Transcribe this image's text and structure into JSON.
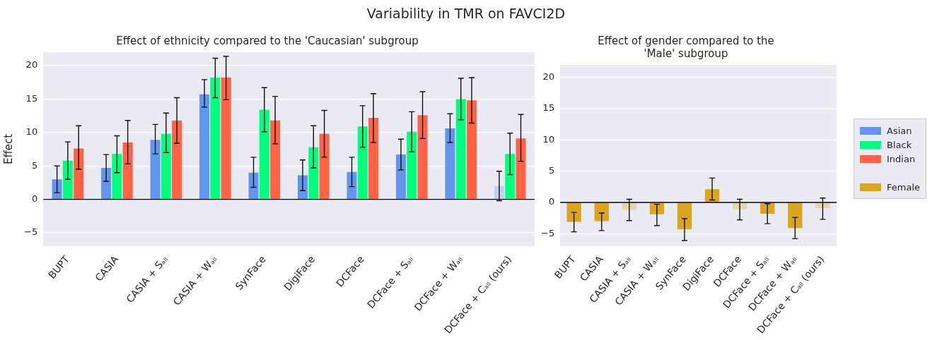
{
  "chart_data": [
    {
      "type": "bar",
      "title": "Variability in TMR on FAVCI2D",
      "subtitle": "Effect of ethnicity compared to the 'Caucasian' subgroup",
      "ylabel": "Effect",
      "categories": [
        "BUPT",
        "CASIA",
        "CASIA + Sₐₗₗ",
        "CASIA + Wₐₗₗ",
        "SynFace",
        "DigiFace",
        "DCFace",
        "DCFace + Sₐₗₗ",
        "DCFace + Wₐₗₗ",
        "DCFace + Cₐₗₗ (ours)"
      ],
      "series": [
        {
          "name": "Asian",
          "color": "#6495ed",
          "colors": [
            "#6495ed",
            "#6495ed",
            "#6495ed",
            "#6495ed",
            "#6495ed",
            "#6495ed",
            "#6495ed",
            "#6495ed",
            "#6495ed",
            "#c2d0f0"
          ],
          "values": [
            3.0,
            4.7,
            8.9,
            15.7,
            4.0,
            3.6,
            4.1,
            6.7,
            10.6,
            2.0
          ],
          "errors": [
            [
              1.0,
              5.0
            ],
            [
              2.7,
              6.7
            ],
            [
              6.8,
              11.2
            ],
            [
              13.8,
              17.9
            ],
            [
              1.8,
              6.3
            ],
            [
              1.3,
              5.9
            ],
            [
              1.9,
              6.3
            ],
            [
              4.4,
              9.0
            ],
            [
              8.5,
              12.8
            ],
            [
              -0.2,
              4.2
            ]
          ]
        },
        {
          "name": "Black",
          "color": "#00ff7f",
          "values": [
            5.8,
            6.8,
            9.8,
            18.2,
            13.4,
            7.8,
            10.9,
            10.1,
            15.0,
            6.8
          ],
          "errors": [
            [
              3.0,
              8.6
            ],
            [
              4.0,
              9.5
            ],
            [
              7.0,
              12.9
            ],
            [
              15.2,
              21.1
            ],
            [
              10.1,
              16.7
            ],
            [
              4.7,
              11.0
            ],
            [
              7.8,
              14.0
            ],
            [
              7.1,
              13.1
            ],
            [
              11.9,
              18.1
            ],
            [
              3.7,
              9.9
            ]
          ]
        },
        {
          "name": "Indian",
          "color": "#ff6347",
          "values": [
            7.6,
            8.5,
            11.8,
            18.2,
            11.8,
            9.8,
            12.2,
            12.6,
            14.8,
            9.1
          ],
          "errors": [
            [
              4.5,
              11.0
            ],
            [
              5.3,
              11.8
            ],
            [
              8.4,
              15.2
            ],
            [
              14.9,
              21.4
            ],
            [
              8.3,
              15.4
            ],
            [
              6.3,
              13.3
            ],
            [
              8.5,
              15.8
            ],
            [
              9.1,
              16.1
            ],
            [
              11.4,
              18.2
            ],
            [
              5.7,
              12.7
            ]
          ]
        }
      ],
      "ylim": [
        -7,
        22
      ],
      "yticks": [
        {
          "value": -5,
          "label": "−5"
        },
        0,
        5,
        10,
        15,
        20
      ],
      "grid": "y",
      "legend": "right",
      "ref_lines": [
        {
          "axis": "y",
          "value": 0,
          "color": "#000000"
        }
      ]
    },
    {
      "type": "bar",
      "title": "Effect of gender compared to the 'Male' subgroup",
      "categories": [
        "BUPT",
        "CASIA",
        "CASIA + Sₐₗₗ",
        "CASIA + Wₐₗₗ",
        "SynFace",
        "DigiFace",
        "DCFace",
        "DCFace + Sₐₗₗ",
        "DCFace + Wₐₗₗ",
        "DCFace + Cₐₗₗ (ours)"
      ],
      "series": [
        {
          "name": "Female",
          "color": "#daa520",
          "colors": [
            "#daa520",
            "#daa520",
            "#e5d5b3",
            "#daa520",
            "#daa520",
            "#daa520",
            "#e5d5b3",
            "#daa520",
            "#daa520",
            "#e5d5b3"
          ],
          "values": [
            -3.1,
            -3.0,
            -1.2,
            -1.9,
            -4.3,
            2.1,
            -1.1,
            -1.8,
            -4.1,
            -0.9
          ],
          "errors": [
            [
              -4.7,
              -1.6
            ],
            [
              -4.5,
              -1.7
            ],
            [
              -2.9,
              0.5
            ],
            [
              -3.7,
              -0.3
            ],
            [
              -6.1,
              -2.6
            ],
            [
              0.4,
              3.9
            ],
            [
              -2.8,
              0.5
            ],
            [
              -3.4,
              -0.2
            ],
            [
              -5.8,
              -2.4
            ],
            [
              -2.7,
              0.7
            ]
          ]
        }
      ],
      "ylim": [
        -7,
        22
      ],
      "yticks": [
        {
          "value": -5,
          "label": "−5"
        },
        0,
        5,
        10,
        15,
        20
      ],
      "grid": "y",
      "legend": "right",
      "ref_lines": [
        {
          "axis": "y",
          "value": 0,
          "color": "#000000"
        }
      ]
    }
  ]
}
